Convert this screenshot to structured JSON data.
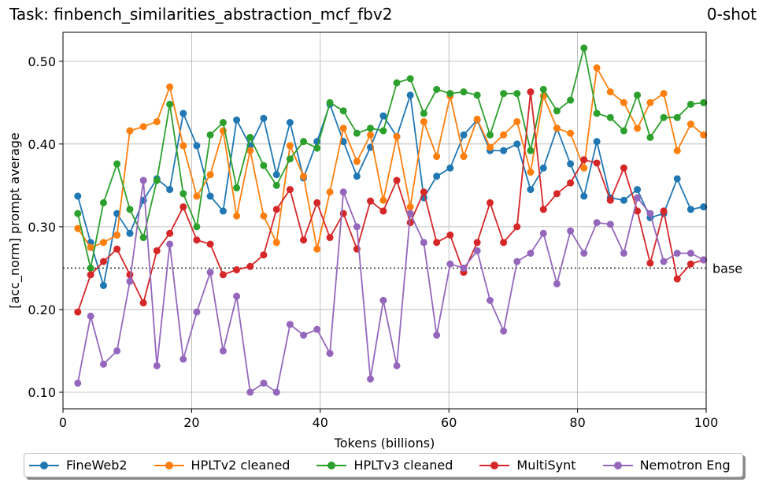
{
  "title_left": "Task: finbench_similarities_abstraction_mcf_fbv2",
  "title_right": "0-shot",
  "chart_data": {
    "type": "line",
    "xlabel": "Tokens (billions)",
    "ylabel": "[acc_norm] prompt average",
    "xlim": [
      0,
      100
    ],
    "ylim": [
      0.08,
      0.535
    ],
    "xticks": [
      0,
      20,
      40,
      60,
      80,
      100
    ],
    "yticks": [
      0.1,
      0.2,
      0.3,
      0.4,
      0.5
    ],
    "xtick_labels": [
      "0",
      "20",
      "40",
      "60",
      "80",
      "100"
    ],
    "ytick_labels": [
      "0.10",
      "0.20",
      "0.30",
      "0.40",
      "0.50"
    ],
    "grid": true,
    "legend_placement": "bottom-center",
    "baseline": {
      "label": "base",
      "value": 0.25
    },
    "x": [
      2.3,
      4.3,
      6.3,
      8.4,
      10.4,
      12.5,
      14.6,
      16.6,
      18.7,
      20.8,
      22.9,
      24.9,
      27.0,
      29.1,
      31.2,
      33.2,
      35.3,
      37.4,
      39.5,
      41.5,
      43.6,
      45.7,
      47.8,
      49.8,
      51.9,
      54.0,
      56.1,
      58.1,
      60.2,
      62.3,
      64.4,
      66.4,
      68.5,
      70.6,
      72.7,
      74.7,
      76.8,
      78.9,
      81.0,
      83.0,
      85.1,
      87.2,
      89.3,
      91.3,
      93.4,
      95.5,
      97.6,
      99.6
    ],
    "series": [
      {
        "name": "FineWeb2",
        "color": "#1f77b4",
        "values": [
          0.337,
          0.281,
          0.229,
          0.316,
          0.292,
          0.332,
          0.358,
          0.345,
          0.437,
          0.398,
          0.337,
          0.319,
          0.429,
          0.398,
          0.431,
          0.363,
          0.426,
          0.359,
          0.403,
          0.448,
          0.403,
          0.361,
          0.396,
          0.434,
          0.409,
          0.459,
          0.335,
          0.361,
          0.371,
          0.411,
          0.429,
          0.392,
          0.392,
          0.4,
          0.345,
          0.371,
          0.419,
          0.376,
          0.337,
          0.403,
          0.335,
          0.332,
          0.345,
          0.311,
          0.316,
          0.358,
          0.321,
          0.324
        ]
      },
      {
        "name": "HPLTv2 cleaned",
        "color": "#ff7f0e",
        "values": [
          0.298,
          0.275,
          0.281,
          0.29,
          0.416,
          0.421,
          0.427,
          0.469,
          0.398,
          0.337,
          0.363,
          0.416,
          0.313,
          0.392,
          0.313,
          0.281,
          0.398,
          0.361,
          0.273,
          0.342,
          0.419,
          0.379,
          0.411,
          0.332,
          0.409,
          0.324,
          0.427,
          0.385,
          0.458,
          0.385,
          0.43,
          0.396,
          0.411,
          0.427,
          0.366,
          0.458,
          0.419,
          0.413,
          0.371,
          0.492,
          0.463,
          0.45,
          0.419,
          0.45,
          0.461,
          0.392,
          0.424,
          0.411
        ]
      },
      {
        "name": "HPLTv3 cleaned",
        "color": "#2ca02c",
        "values": [
          0.316,
          0.25,
          0.329,
          0.376,
          0.321,
          0.287,
          0.356,
          0.448,
          0.34,
          0.3,
          0.411,
          0.426,
          0.347,
          0.408,
          0.374,
          0.35,
          0.382,
          0.403,
          0.395,
          0.45,
          0.44,
          0.413,
          0.419,
          0.416,
          0.474,
          0.479,
          0.437,
          0.466,
          0.461,
          0.463,
          0.459,
          0.411,
          0.461,
          0.461,
          0.392,
          0.466,
          0.44,
          0.453,
          0.516,
          0.437,
          0.432,
          0.416,
          0.459,
          0.408,
          0.432,
          0.432,
          0.448,
          0.45
        ]
      },
      {
        "name": "MultiSynt",
        "color": "#d62728",
        "values": [
          0.197,
          0.242,
          0.258,
          0.273,
          0.242,
          0.208,
          0.271,
          0.292,
          0.324,
          0.284,
          0.279,
          0.242,
          0.248,
          0.252,
          0.266,
          0.321,
          0.345,
          0.284,
          0.329,
          0.287,
          0.316,
          0.273,
          0.331,
          0.319,
          0.356,
          0.305,
          0.342,
          0.281,
          0.29,
          0.245,
          0.281,
          0.329,
          0.281,
          0.3,
          0.463,
          0.321,
          0.34,
          0.353,
          0.381,
          0.377,
          0.332,
          0.371,
          0.319,
          0.256,
          0.319,
          0.237,
          0.255,
          0.26
        ]
      },
      {
        "name": "Nemotron Eng",
        "color": "#9467bd",
        "values": [
          0.111,
          0.192,
          0.134,
          0.15,
          0.234,
          0.356,
          0.132,
          0.279,
          0.14,
          0.197,
          0.245,
          0.15,
          0.216,
          0.1,
          0.111,
          0.1,
          0.182,
          0.169,
          0.176,
          0.147,
          0.342,
          0.3,
          0.116,
          0.211,
          0.132,
          0.316,
          0.281,
          0.169,
          0.255,
          0.25,
          0.271,
          0.211,
          0.174,
          0.258,
          0.268,
          0.292,
          0.231,
          0.295,
          0.268,
          0.305,
          0.303,
          0.268,
          0.335,
          0.316,
          0.258,
          0.268,
          0.268,
          0.26
        ]
      }
    ]
  }
}
